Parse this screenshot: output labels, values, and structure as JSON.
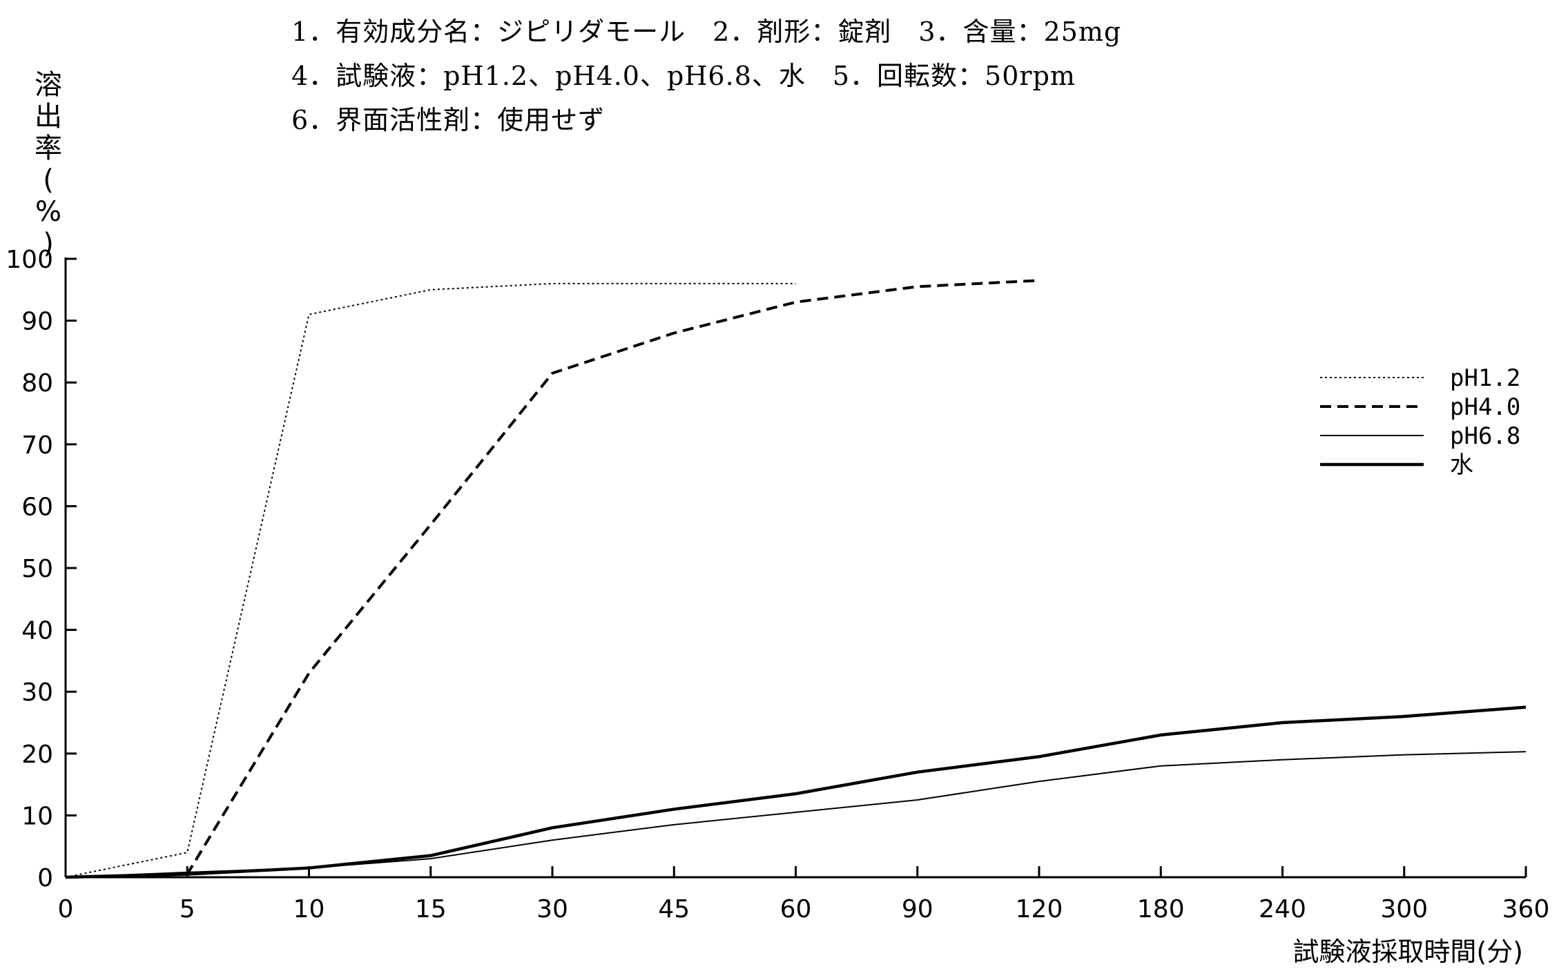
{
  "header": {
    "lines": [
      "1．有効成分名：ジピリダモール　2．剤形：錠剤　3．含量：25mg",
      "4．試験液：pH1.2、pH4.0、pH6.8、水　5．回転数：50rpm",
      "6．界面活性剤：使用せず"
    ]
  },
  "chart_data": {
    "type": "line",
    "title": "",
    "xlabel": "試験液採取時間(分)",
    "ylabel": "溶出率(%)",
    "categories": [
      "0",
      "5",
      "10",
      "15",
      "30",
      "45",
      "60",
      "90",
      "120",
      "180",
      "240",
      "300",
      "360"
    ],
    "ylim": [
      0,
      100
    ],
    "yticks": [
      0,
      10,
      20,
      30,
      40,
      50,
      60,
      70,
      80,
      90,
      100
    ],
    "legend_position": "right",
    "grid": false,
    "series": [
      {
        "name": "pH1.2",
        "style": "dotted",
        "x": [
          "0",
          "5",
          "10",
          "15",
          "30",
          "45",
          "60"
        ],
        "values": [
          0,
          4,
          91,
          95,
          96,
          96,
          96
        ]
      },
      {
        "name": "pH4.0",
        "style": "dashed",
        "x": [
          "0",
          "5",
          "10",
          "15",
          "30",
          "45",
          "60",
          "90",
          "120"
        ],
        "values": [
          0,
          0.5,
          33,
          57,
          81.5,
          88,
          93,
          95.5,
          96.5
        ]
      },
      {
        "name": "pH6.8",
        "style": "thin",
        "x": [
          "0",
          "5",
          "10",
          "15",
          "30",
          "45",
          "60",
          "90",
          "120",
          "180",
          "240",
          "300",
          "360"
        ],
        "values": [
          0,
          0.8,
          1.5,
          3,
          6,
          8.5,
          10.5,
          12.5,
          15.5,
          18,
          19,
          19.8,
          20.3
        ]
      },
      {
        "name": "水",
        "style": "thick",
        "x": [
          "0",
          "5",
          "10",
          "15",
          "30",
          "45",
          "60",
          "90",
          "120",
          "180",
          "240",
          "300",
          "360"
        ],
        "values": [
          0,
          0.5,
          1.5,
          3.5,
          8,
          11,
          13.5,
          17,
          19.5,
          23,
          25,
          26,
          27.5
        ]
      }
    ]
  }
}
